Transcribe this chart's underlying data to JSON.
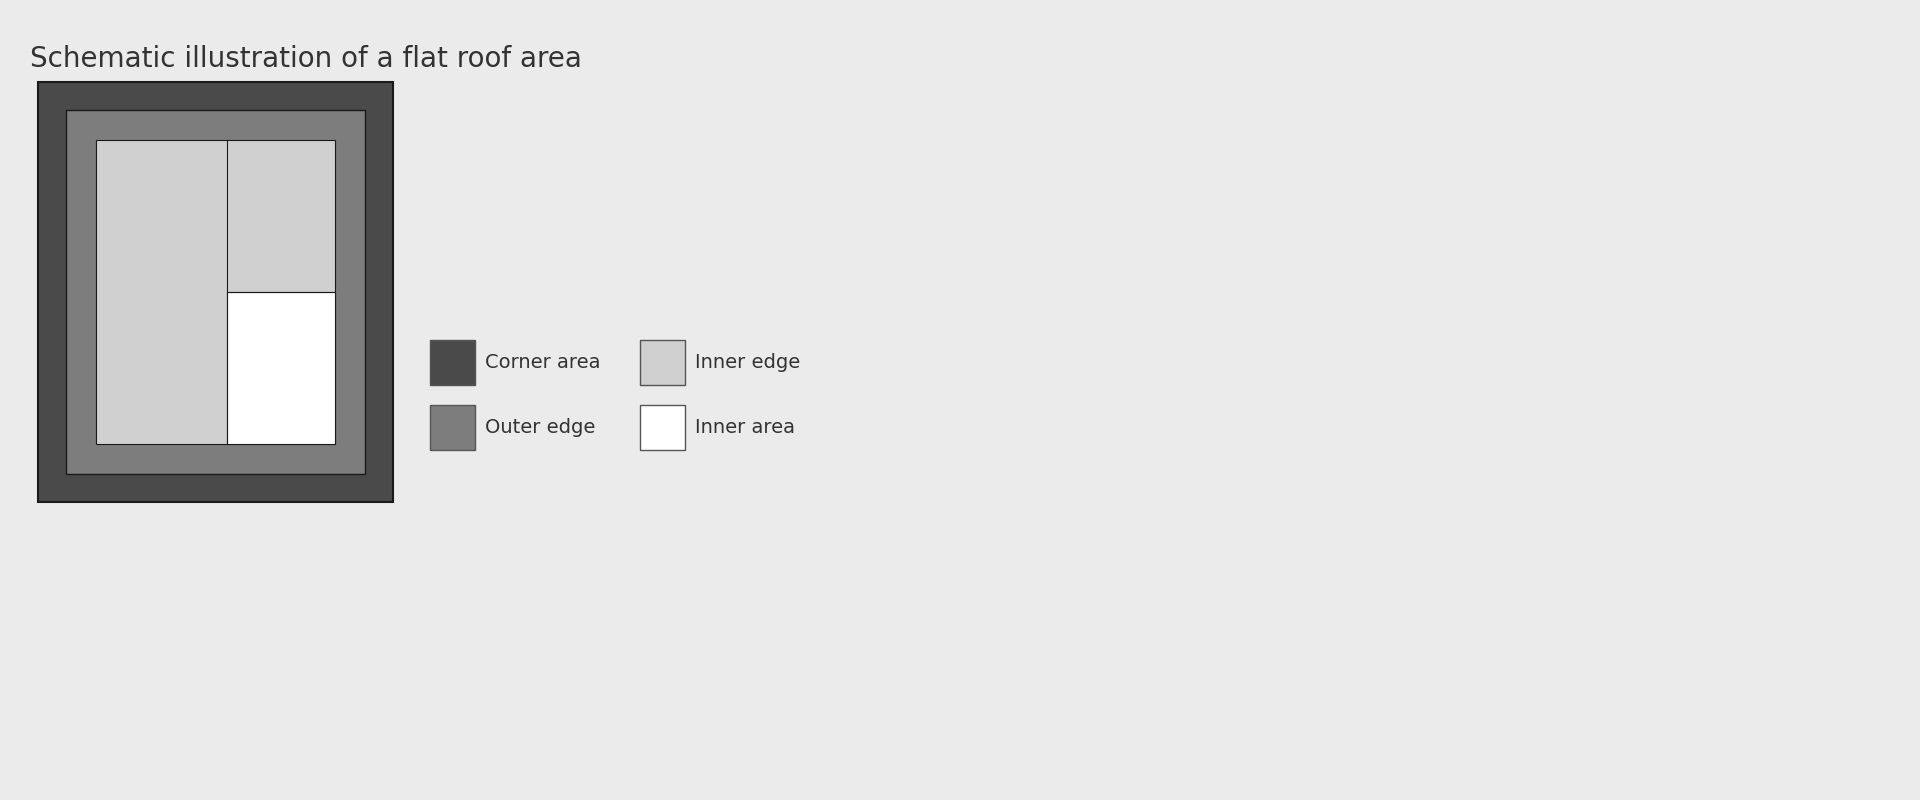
{
  "title": "Schematic illustration of a flat roof area",
  "title_fontsize": 20,
  "title_color": "#333333",
  "background_color": "#ebebeb",
  "colors": {
    "corner": "#4a4a4a",
    "outer_edge": "#7d7d7d",
    "inner_edge": "#d0d0d0",
    "inner_area": "#ffffff",
    "border": "#1a1a1a"
  },
  "legend": [
    {
      "label": "Corner area",
      "color": "#4a4a4a",
      "col": 0,
      "row": 0
    },
    {
      "label": "Outer edge",
      "color": "#7d7d7d",
      "col": 0,
      "row": 1
    },
    {
      "label": "Inner edge",
      "color": "#d0d0d0",
      "col": 1,
      "row": 0
    },
    {
      "label": "Inner area",
      "color": "#ffffff",
      "col": 1,
      "row": 1
    }
  ],
  "fig_w": 19.2,
  "fig_h": 8.0,
  "dpi": 100
}
